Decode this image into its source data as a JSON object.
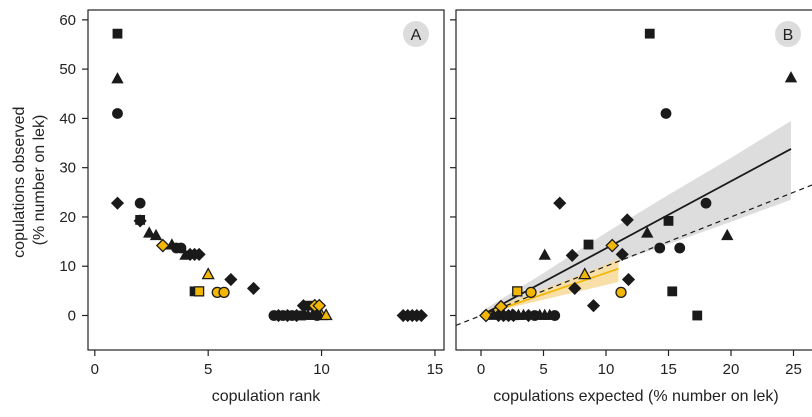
{
  "colors": {
    "black": "#1a1a1a",
    "gold": "#f2b705",
    "gold_band": "#f6d998",
    "grey_band": "#d9d9d9",
    "letter_bg": "#dcdcdc"
  },
  "panels": {
    "a": {
      "letter": "A"
    },
    "b": {
      "letter": "B"
    }
  },
  "chart_data": [
    {
      "type": "scatter",
      "panel": "A",
      "xlabel": "copulation rank",
      "ylabel": "copulations observed\n(% number on lek)",
      "xlim": [
        -0.3,
        15.4
      ],
      "ylim": [
        -7,
        62
      ],
      "xticks": [
        0,
        5,
        10,
        15
      ],
      "yticks": [
        0,
        10,
        20,
        30,
        40,
        50,
        60
      ],
      "grid": false,
      "points": [
        {
          "x": 1.0,
          "y": 57.2,
          "shape": "square",
          "color": "black"
        },
        {
          "x": 1.0,
          "y": 48.0,
          "shape": "triangle",
          "color": "black"
        },
        {
          "x": 1.0,
          "y": 41.0,
          "shape": "circle",
          "color": "black"
        },
        {
          "x": 1.0,
          "y": 22.8,
          "shape": "diamond",
          "color": "black"
        },
        {
          "x": 2.0,
          "y": 22.8,
          "shape": "circle",
          "color": "black"
        },
        {
          "x": 2.0,
          "y": 19.4,
          "shape": "square",
          "color": "black"
        },
        {
          "x": 2.0,
          "y": 19.2,
          "shape": "diamond",
          "color": "black"
        },
        {
          "x": 2.4,
          "y": 16.7,
          "shape": "triangle",
          "color": "black"
        },
        {
          "x": 2.7,
          "y": 16.2,
          "shape": "triangle",
          "color": "black"
        },
        {
          "x": 3.0,
          "y": 14.2,
          "shape": "diamond",
          "color": "gold"
        },
        {
          "x": 3.4,
          "y": 14.3,
          "shape": "triangle",
          "color": "black"
        },
        {
          "x": 3.6,
          "y": 13.7,
          "shape": "circle",
          "color": "black"
        },
        {
          "x": 3.8,
          "y": 13.7,
          "shape": "circle",
          "color": "black"
        },
        {
          "x": 4.0,
          "y": 12.2,
          "shape": "triangle",
          "color": "black"
        },
        {
          "x": 4.2,
          "y": 12.4,
          "shape": "diamond",
          "color": "black"
        },
        {
          "x": 4.4,
          "y": 12.4,
          "shape": "diamond",
          "color": "black"
        },
        {
          "x": 4.6,
          "y": 12.4,
          "shape": "diamond",
          "color": "black"
        },
        {
          "x": 5.0,
          "y": 8.3,
          "shape": "triangle",
          "color": "gold"
        },
        {
          "x": 4.4,
          "y": 4.9,
          "shape": "square",
          "color": "black"
        },
        {
          "x": 4.6,
          "y": 4.9,
          "shape": "square",
          "color": "gold"
        },
        {
          "x": 5.4,
          "y": 4.7,
          "shape": "circle",
          "color": "gold"
        },
        {
          "x": 5.7,
          "y": 4.7,
          "shape": "circle",
          "color": "gold"
        },
        {
          "x": 6.0,
          "y": 7.3,
          "shape": "diamond",
          "color": "black"
        },
        {
          "x": 7.0,
          "y": 5.5,
          "shape": "diamond",
          "color": "black"
        },
        {
          "x": 7.9,
          "y": 0,
          "shape": "circle",
          "color": "black"
        },
        {
          "x": 8.1,
          "y": 0,
          "shape": "diamond",
          "color": "black"
        },
        {
          "x": 8.3,
          "y": 0,
          "shape": "circle",
          "color": "black"
        },
        {
          "x": 8.5,
          "y": 0,
          "shape": "diamond",
          "color": "black"
        },
        {
          "x": 8.7,
          "y": 0,
          "shape": "circle",
          "color": "black"
        },
        {
          "x": 8.9,
          "y": 0,
          "shape": "diamond",
          "color": "black"
        },
        {
          "x": 9.1,
          "y": 0,
          "shape": "square",
          "color": "black"
        },
        {
          "x": 9.2,
          "y": 2.0,
          "shape": "diamond",
          "color": "black"
        },
        {
          "x": 9.4,
          "y": 0,
          "shape": "triangle",
          "color": "black"
        },
        {
          "x": 9.5,
          "y": 2.0,
          "shape": "square",
          "color": "black"
        },
        {
          "x": 9.6,
          "y": 0,
          "shape": "triangle",
          "color": "black"
        },
        {
          "x": 9.7,
          "y": 2.0,
          "shape": "diamond",
          "color": "gold"
        },
        {
          "x": 9.9,
          "y": 2.0,
          "shape": "diamond",
          "color": "gold"
        },
        {
          "x": 10.0,
          "y": 0,
          "shape": "triangle",
          "color": "gold"
        },
        {
          "x": 10.2,
          "y": 0,
          "shape": "triangle",
          "color": "gold"
        },
        {
          "x": 9.8,
          "y": 0,
          "shape": "circle",
          "color": "black"
        },
        {
          "x": 13.6,
          "y": 0,
          "shape": "diamond",
          "color": "black"
        },
        {
          "x": 13.8,
          "y": 0,
          "shape": "diamond",
          "color": "black"
        },
        {
          "x": 14.0,
          "y": 0,
          "shape": "diamond",
          "color": "black"
        },
        {
          "x": 14.2,
          "y": 0,
          "shape": "diamond",
          "color": "black"
        },
        {
          "x": 14.4,
          "y": 0,
          "shape": "diamond",
          "color": "black"
        }
      ]
    },
    {
      "type": "scatter",
      "panel": "B",
      "xlabel": "copulations expected (% number on lek)",
      "ylabel": "",
      "xlim": [
        -2,
        26.8
      ],
      "ylim": [
        -7,
        62
      ],
      "xticks": [
        0,
        5,
        10,
        15,
        20,
        25
      ],
      "yticks": [
        0,
        10,
        20,
        30,
        40,
        50,
        60
      ],
      "grid": false,
      "points": [
        {
          "x": 13.5,
          "y": 57.2,
          "shape": "square",
          "color": "black"
        },
        {
          "x": 24.8,
          "y": 48.2,
          "shape": "triangle",
          "color": "black"
        },
        {
          "x": 14.8,
          "y": 41.0,
          "shape": "circle",
          "color": "black"
        },
        {
          "x": 18.0,
          "y": 22.8,
          "shape": "circle",
          "color": "black"
        },
        {
          "x": 6.3,
          "y": 22.8,
          "shape": "diamond",
          "color": "black"
        },
        {
          "x": 11.7,
          "y": 19.4,
          "shape": "diamond",
          "color": "black"
        },
        {
          "x": 15.0,
          "y": 19.2,
          "shape": "square",
          "color": "black"
        },
        {
          "x": 19.7,
          "y": 16.2,
          "shape": "triangle",
          "color": "black"
        },
        {
          "x": 13.3,
          "y": 16.7,
          "shape": "triangle",
          "color": "black"
        },
        {
          "x": 8.6,
          "y": 14.4,
          "shape": "square",
          "color": "black"
        },
        {
          "x": 10.5,
          "y": 14.2,
          "shape": "diamond",
          "color": "gold"
        },
        {
          "x": 7.3,
          "y": 12.2,
          "shape": "diamond",
          "color": "black"
        },
        {
          "x": 11.3,
          "y": 12.4,
          "shape": "diamond",
          "color": "black"
        },
        {
          "x": 14.3,
          "y": 13.7,
          "shape": "circle",
          "color": "black"
        },
        {
          "x": 15.9,
          "y": 13.7,
          "shape": "circle",
          "color": "black"
        },
        {
          "x": 5.1,
          "y": 12.2,
          "shape": "triangle",
          "color": "black"
        },
        {
          "x": 8.3,
          "y": 8.3,
          "shape": "triangle",
          "color": "gold"
        },
        {
          "x": 7.5,
          "y": 5.5,
          "shape": "diamond",
          "color": "black"
        },
        {
          "x": 11.8,
          "y": 7.3,
          "shape": "diamond",
          "color": "black"
        },
        {
          "x": 15.3,
          "y": 4.9,
          "shape": "square",
          "color": "black"
        },
        {
          "x": 2.9,
          "y": 4.9,
          "shape": "square",
          "color": "gold"
        },
        {
          "x": 4.0,
          "y": 4.7,
          "shape": "circle",
          "color": "gold"
        },
        {
          "x": 11.2,
          "y": 4.7,
          "shape": "circle",
          "color": "gold"
        },
        {
          "x": 17.3,
          "y": 0,
          "shape": "square",
          "color": "black"
        },
        {
          "x": 9.0,
          "y": 2.0,
          "shape": "diamond",
          "color": "black"
        },
        {
          "x": 0.4,
          "y": 0,
          "shape": "diamond",
          "color": "gold"
        },
        {
          "x": 1.6,
          "y": 1.8,
          "shape": "diamond",
          "color": "gold"
        },
        {
          "x": 2.5,
          "y": 0,
          "shape": "triangle",
          "color": "gold"
        },
        {
          "x": 1.0,
          "y": 0,
          "shape": "triangle",
          "color": "black"
        },
        {
          "x": 1.4,
          "y": 0,
          "shape": "diamond",
          "color": "black"
        },
        {
          "x": 1.8,
          "y": 0,
          "shape": "diamond",
          "color": "black"
        },
        {
          "x": 2.2,
          "y": 0,
          "shape": "diamond",
          "color": "black"
        },
        {
          "x": 2.6,
          "y": 0,
          "shape": "diamond",
          "color": "black"
        },
        {
          "x": 3.0,
          "y": 0,
          "shape": "triangle",
          "color": "black"
        },
        {
          "x": 3.4,
          "y": 0,
          "shape": "triangle",
          "color": "black"
        },
        {
          "x": 3.8,
          "y": 0,
          "shape": "diamond",
          "color": "black"
        },
        {
          "x": 4.3,
          "y": 0,
          "shape": "circle",
          "color": "black"
        },
        {
          "x": 4.7,
          "y": 0,
          "shape": "triangle",
          "color": "black"
        },
        {
          "x": 5.1,
          "y": 0,
          "shape": "triangle",
          "color": "black"
        },
        {
          "x": 5.5,
          "y": 0,
          "shape": "triangle",
          "color": "black"
        },
        {
          "x": 5.9,
          "y": 0,
          "shape": "circle",
          "color": "black"
        }
      ],
      "lines": [
        {
          "name": "black fit",
          "style": "solid",
          "color": "black",
          "x": [
            0,
            24.8
          ],
          "y": [
            0,
            33.8
          ]
        },
        {
          "name": "gold fit",
          "style": "solid",
          "color": "gold",
          "x": [
            0,
            11.0
          ],
          "y": [
            0,
            9.5
          ]
        },
        {
          "name": "1:1 reference",
          "style": "dashed",
          "color": "black",
          "x": [
            -2,
            26.8
          ],
          "y": [
            -2,
            26.8
          ]
        }
      ],
      "bands": [
        {
          "color": "grey",
          "x": [
            0,
            5,
            10,
            15,
            20,
            24.8
          ],
          "lower": [
            0,
            5.2,
            10.0,
            14.5,
            19.0,
            23.5
          ],
          "upper": [
            0.8,
            8.6,
            16.8,
            24.5,
            32.0,
            39.5
          ]
        },
        {
          "color": "gold",
          "x": [
            0,
            3,
            6,
            9,
            11
          ],
          "lower": [
            0,
            2.0,
            3.8,
            5.6,
            6.8
          ],
          "upper": [
            0.6,
            3.5,
            6.3,
            9.3,
            11.5
          ]
        }
      ]
    }
  ]
}
